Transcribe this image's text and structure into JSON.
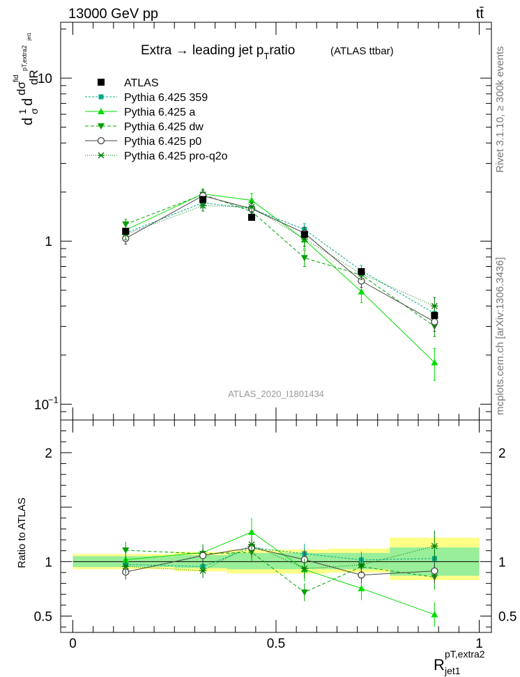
{
  "header": {
    "energy_label": "13000 GeV pp",
    "process_label": "tt̄",
    "side_label_top": "Rivet 3.1.10, ≥ 300k events",
    "side_label_bottom": "mcplots.cern.ch [arXiv:1306.3436]"
  },
  "chart_data": {
    "type": "line",
    "title": "Extra → leading jet p_T ratio",
    "title_main": "Extra → leading jet p",
    "title_sub": "T",
    "title_tail": "ratio",
    "title_note": "(ATLAS ttbar)",
    "watermark": "ATLAS_2020_I1801434",
    "ylabel_main": "1/σ dσ^fid/dR^{pT,extra2}_{jet1}",
    "ylabel_ratio": "Ratio to ATLAS",
    "xlabel_main": "R",
    "xlabel_sup": "pT,extra2",
    "xlabel_sub": "jet1",
    "xlim": [
      -0.03,
      1.03
    ],
    "ylim_main": [
      0.08,
      22
    ],
    "ylim_main_scale": "log",
    "ylim_ratio": [
      0.35,
      2.3
    ],
    "main_yticks": [
      {
        "v": 0.1,
        "base": "10",
        "exp": "−1"
      },
      {
        "v": 1,
        "label": "1"
      },
      {
        "v": 10,
        "label": "10"
      }
    ],
    "ratio_yticks": [
      {
        "v": 0.5,
        "label": "0.5"
      },
      {
        "v": 1,
        "label": "1"
      },
      {
        "v": 2,
        "label": "2"
      }
    ],
    "xticks": [
      {
        "v": 0,
        "label": "0"
      },
      {
        "v": 0.5,
        "label": "0.5"
      },
      {
        "v": 1,
        "label": "1"
      }
    ],
    "bin_edges": [
      0,
      0.25,
      0.38,
      0.63,
      0.78,
      1.0
    ],
    "x": [
      0.13,
      0.32,
      0.44,
      0.57,
      0.71,
      0.89
    ],
    "band_inner": [
      [
        0.95,
        1.05
      ],
      [
        0.94,
        1.06
      ],
      [
        0.93,
        1.08
      ],
      [
        0.93,
        1.08
      ],
      [
        0.87,
        1.13
      ],
      [
        0.82,
        1.17
      ]
    ],
    "band_outer": [
      [
        0.93,
        1.07
      ],
      [
        0.91,
        1.09
      ],
      [
        0.89,
        1.11
      ],
      [
        0.9,
        1.12
      ],
      [
        0.83,
        1.22
      ],
      [
        0.77,
        1.28
      ]
    ],
    "data": {
      "name": "ATLAS",
      "values": [
        1.15,
        1.8,
        1.4,
        1.1,
        0.65,
        0.35
      ]
    },
    "series": [
      {
        "name": "Pythia 6.425 359",
        "color": "#00a887",
        "dash": "3,2",
        "marker": "square",
        "values": [
          1.12,
          1.72,
          1.58,
          1.18,
          0.66,
          0.36
        ],
        "err": [
          0.08,
          0.12,
          0.12,
          0.1,
          0.05,
          0.04
        ]
      },
      {
        "name": "Pythia 6.425 a",
        "color": "#00dd00",
        "dash": "",
        "marker": "triangle-up",
        "values": [
          1.17,
          1.95,
          1.78,
          1.02,
          0.49,
          0.18
        ],
        "err": [
          0.08,
          0.14,
          0.18,
          0.12,
          0.07,
          0.04
        ]
      },
      {
        "name": "Pythia 6.425 dw",
        "color": "#00a000",
        "dash": "5,3",
        "marker": "triangle-down",
        "values": [
          1.27,
          1.93,
          1.52,
          0.79,
          0.62,
          0.3
        ],
        "err": [
          0.09,
          0.15,
          0.13,
          0.09,
          0.06,
          0.04
        ]
      },
      {
        "name": "Pythia 6.425 p0",
        "color": "#444444",
        "dash": "",
        "marker": "circle",
        "values": [
          1.04,
          1.9,
          1.58,
          1.12,
          0.57,
          0.32
        ],
        "err": [
          0.08,
          0.14,
          0.12,
          0.1,
          0.05,
          0.04
        ]
      },
      {
        "name": "Pythia 6.425 pro-q2o",
        "color": "#007a00",
        "dash": "1,2",
        "marker": "star",
        "values": [
          1.1,
          1.65,
          1.62,
          1.03,
          0.63,
          0.4
        ],
        "err": [
          0.08,
          0.12,
          0.12,
          0.1,
          0.05,
          0.05
        ]
      }
    ]
  }
}
